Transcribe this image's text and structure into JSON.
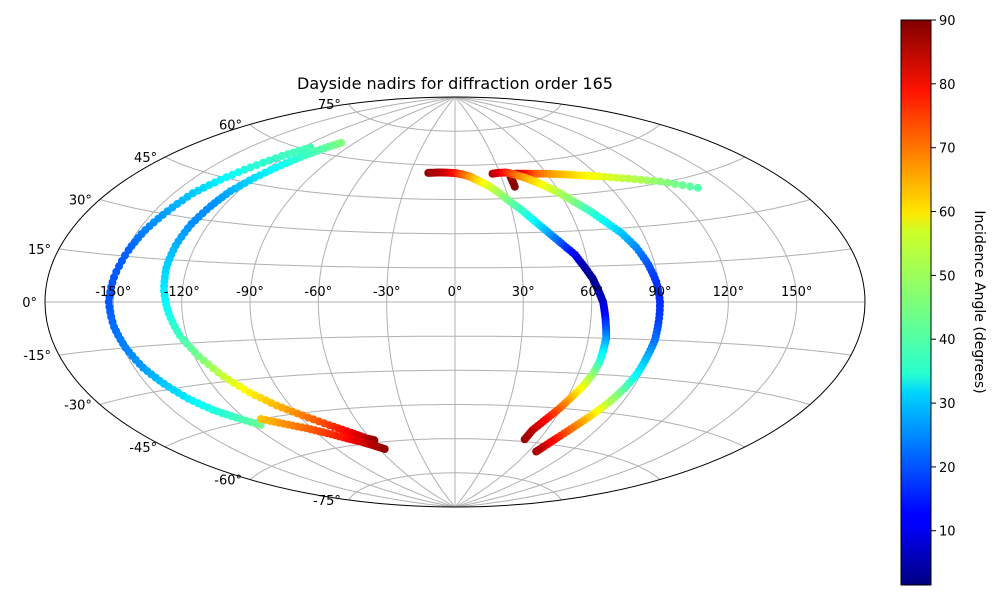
{
  "chart_data": {
    "type": "scatter",
    "projection": "aitoff",
    "title": "Dayside nadirs for diffraction order 165",
    "grid": true,
    "longitude_ticks": [
      "-150°",
      "-120°",
      "-90°",
      "-60°",
      "-30°",
      "0°",
      "30°",
      "60°",
      "90°",
      "120°",
      "150°"
    ],
    "longitude_values": [
      -150,
      -120,
      -90,
      -60,
      -30,
      0,
      30,
      60,
      90,
      120,
      150
    ],
    "latitude_ticks": [
      "75°",
      "60°",
      "45°",
      "30°",
      "15°",
      "0°",
      "-15°",
      "-30°",
      "-45°",
      "-60°",
      "-75°"
    ],
    "latitude_values": [
      75,
      60,
      45,
      30,
      15,
      0,
      -15,
      -30,
      -45,
      -60,
      -75
    ],
    "colorbar": {
      "label": "Incidence Angle (degrees)",
      "range": [
        1.5,
        90
      ],
      "ticks": [
        "10",
        "20",
        "30",
        "40",
        "50",
        "60",
        "70",
        "80",
        "90"
      ],
      "tick_values": [
        10,
        20,
        30,
        40,
        50,
        60,
        70,
        80,
        90
      ],
      "colormap": "jet"
    },
    "series": [
      {
        "points": [
          [
            135,
            41,
            42
          ],
          [
            120,
            45.5,
            47
          ],
          [
            105,
            48.5,
            51
          ],
          [
            90,
            51,
            55
          ],
          [
            80,
            52.3,
            58
          ],
          [
            70,
            53.5,
            62
          ],
          [
            60,
            54.5,
            66
          ],
          [
            50,
            55,
            72
          ],
          [
            45,
            55.3,
            78
          ],
          [
            40,
            55.5,
            84
          ],
          [
            36,
            54.5,
            87
          ],
          [
            36,
            50,
            89
          ]
        ]
      },
      {
        "points": [
          [
            -18,
            56.5,
            88
          ],
          [
            -12,
            56.8,
            86
          ],
          [
            -6,
            56.8,
            84
          ],
          [
            0,
            56.6,
            78
          ],
          [
            5,
            56,
            72
          ],
          [
            10,
            55,
            66
          ],
          [
            15,
            53,
            60
          ],
          [
            20,
            51,
            55
          ],
          [
            25,
            48,
            50
          ],
          [
            30,
            44,
            45
          ],
          [
            35,
            40,
            40
          ],
          [
            40,
            35,
            35
          ],
          [
            45,
            30,
            28
          ],
          [
            50,
            25,
            20
          ],
          [
            55,
            20,
            12
          ],
          [
            58,
            15,
            6
          ],
          [
            61,
            10,
            3
          ],
          [
            63,
            5,
            5
          ],
          [
            65,
            0,
            8
          ],
          [
            66,
            -5,
            12
          ],
          [
            67,
            -10,
            18
          ],
          [
            68,
            -15,
            25
          ],
          [
            68,
            -20,
            32
          ],
          [
            68,
            -25,
            38
          ],
          [
            67,
            -30,
            46
          ],
          [
            65,
            -35,
            54
          ],
          [
            62,
            -40,
            62
          ],
          [
            59,
            -45,
            70
          ],
          [
            55,
            -50,
            78
          ],
          [
            51,
            -55,
            84
          ],
          [
            50,
            -59,
            87
          ]
        ]
      },
      {
        "points": [
          [
            25,
            56,
            86
          ],
          [
            30,
            56.3,
            82
          ],
          [
            35,
            56.2,
            76
          ],
          [
            40,
            55,
            70
          ],
          [
            45,
            53.5,
            65
          ],
          [
            50,
            51.5,
            60
          ],
          [
            55,
            49,
            55
          ],
          [
            60,
            46,
            50
          ],
          [
            65,
            42,
            46
          ],
          [
            70,
            38,
            40
          ],
          [
            75,
            33,
            35
          ],
          [
            80,
            28,
            30
          ],
          [
            84,
            22,
            25
          ],
          [
            87,
            15,
            20
          ],
          [
            89,
            8,
            17
          ],
          [
            90,
            0,
            16
          ],
          [
            90,
            -8,
            18
          ],
          [
            90,
            -15,
            22
          ],
          [
            89,
            -22,
            28
          ],
          [
            88,
            -29,
            34
          ],
          [
            86,
            -35,
            42
          ],
          [
            83,
            -41,
            50
          ],
          [
            79,
            -47,
            60
          ],
          [
            75,
            -52,
            68
          ],
          [
            71,
            -57,
            76
          ],
          [
            68,
            -61,
            82
          ],
          [
            66,
            -63.5,
            86
          ]
        ]
      },
      {
        "points": [
          [
            -115,
            61,
            41
          ],
          [
            -123,
            56,
            40
          ],
          [
            -130,
            50,
            38
          ],
          [
            -136,
            44,
            34
          ],
          [
            -141,
            38,
            30
          ],
          [
            -144,
            31,
            27
          ],
          [
            -147,
            24,
            24
          ],
          [
            -149,
            17,
            21
          ],
          [
            -151,
            8,
            20
          ],
          [
            -152,
            0,
            20
          ],
          [
            -151,
            -8,
            22
          ],
          [
            -149,
            -15,
            24
          ],
          [
            -146,
            -22,
            26
          ],
          [
            -142,
            -28,
            30
          ],
          [
            -137,
            -34,
            33
          ],
          [
            -131,
            -39,
            37
          ],
          [
            -124,
            -43,
            40
          ],
          [
            -116,
            -47,
            44
          ]
        ]
      },
      {
        "points": [
          [
            -100,
            65,
            46
          ],
          [
            -105,
            62,
            43
          ],
          [
            -110,
            58,
            40
          ],
          [
            -115,
            53,
            36
          ],
          [
            -120,
            47,
            32
          ],
          [
            -124,
            41,
            28
          ],
          [
            -126,
            35,
            25
          ],
          [
            -128,
            28,
            25
          ],
          [
            -129,
            20,
            28
          ],
          [
            -129,
            12,
            31
          ],
          [
            -128,
            4,
            33
          ],
          [
            -126,
            -4,
            36
          ],
          [
            -123,
            -12,
            40
          ],
          [
            -118,
            -20,
            45
          ],
          [
            -112,
            -28,
            52
          ],
          [
            -105,
            -35,
            58
          ],
          [
            -97,
            -41,
            63
          ],
          [
            -88,
            -46,
            68
          ],
          [
            -78,
            -51,
            74
          ],
          [
            -69,
            -55,
            80
          ],
          [
            -62,
            -58,
            85
          ],
          [
            -58,
            -59,
            88
          ]
        ]
      },
      {
        "points": [
          [
            -112,
            -45,
            62
          ],
          [
            -103,
            -48,
            66
          ],
          [
            -93,
            -51,
            70
          ],
          [
            -84,
            -54,
            74
          ],
          [
            -75,
            -57,
            78
          ],
          [
            -68,
            -59,
            82
          ],
          [
            -62,
            -61,
            85
          ],
          [
            -56,
            -63,
            88
          ]
        ]
      }
    ]
  }
}
